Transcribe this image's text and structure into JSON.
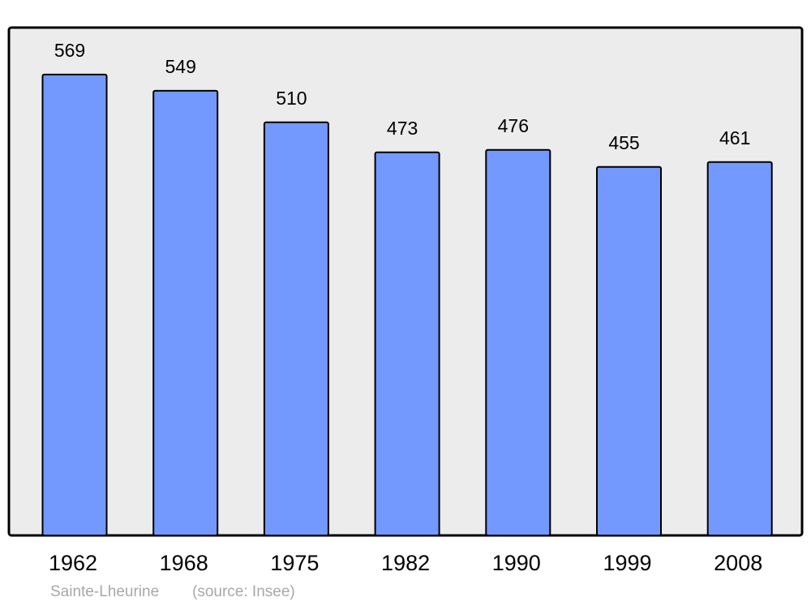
{
  "chart_data": {
    "type": "bar",
    "categories": [
      "1962",
      "1968",
      "1975",
      "1982",
      "1990",
      "1999",
      "2008"
    ],
    "values": [
      569,
      549,
      510,
      473,
      476,
      455,
      461
    ],
    "color": "#7399ff",
    "ylim": [
      0,
      628
    ],
    "footer": {
      "place": "Sainte-Lheurine",
      "source": "(source: Insee)"
    }
  }
}
